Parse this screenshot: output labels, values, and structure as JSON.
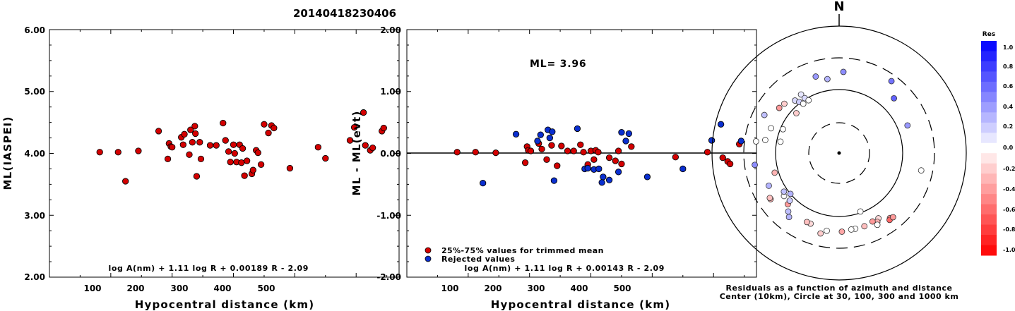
{
  "page_title": "20140418230406",
  "chart_data": [
    {
      "type": "scatter",
      "title": "",
      "ylabel": "ML(IASPEI)",
      "xlabel": "Hypocentral distance (km)",
      "xlim": [
        0,
        570
      ],
      "ylim": [
        2.0,
        6.0
      ],
      "xticks": [
        "100",
        "200",
        "300",
        "400",
        "500"
      ],
      "yticks": [
        "2.00",
        "3.00",
        "4.00",
        "5.00",
        "6.00"
      ],
      "formula": "log A(nm) + 1.11 log R + 0.00189 R - 2.09",
      "color": "#d40000",
      "points": [
        [
          82,
          4.02
        ],
        [
          112,
          4.02
        ],
        [
          124,
          3.55
        ],
        [
          145,
          4.04
        ],
        [
          178,
          4.36
        ],
        [
          193,
          3.91
        ],
        [
          195,
          4.16
        ],
        [
          198,
          4.11
        ],
        [
          200,
          4.1
        ],
        [
          215,
          4.26
        ],
        [
          218,
          4.14
        ],
        [
          220,
          4.31
        ],
        [
          228,
          3.98
        ],
        [
          230,
          4.38
        ],
        [
          233,
          4.18
        ],
        [
          237,
          4.44
        ],
        [
          238,
          4.32
        ],
        [
          240,
          3.63
        ],
        [
          245,
          4.18
        ],
        [
          247,
          3.91
        ],
        [
          262,
          4.13
        ],
        [
          272,
          4.13
        ],
        [
          283,
          4.49
        ],
        [
          287,
          4.21
        ],
        [
          292,
          4.03
        ],
        [
          295,
          3.86
        ],
        [
          300,
          4.14
        ],
        [
          302,
          4.0
        ],
        [
          305,
          3.86
        ],
        [
          310,
          4.14
        ],
        [
          313,
          3.85
        ],
        [
          315,
          4.08
        ],
        [
          318,
          3.64
        ],
        [
          322,
          3.88
        ],
        [
          330,
          3.67
        ],
        [
          332,
          3.73
        ],
        [
          337,
          4.05
        ],
        [
          340,
          4.01
        ],
        [
          345,
          3.82
        ],
        [
          350,
          4.47
        ],
        [
          357,
          4.33
        ],
        [
          362,
          4.45
        ],
        [
          366,
          4.41
        ],
        [
          392,
          3.76
        ],
        [
          438,
          4.1
        ],
        [
          450,
          3.92
        ],
        [
          490,
          4.21
        ],
        [
          497,
          4.42
        ],
        [
          512,
          4.66
        ],
        [
          515,
          4.13
        ],
        [
          523,
          4.05
        ],
        [
          527,
          4.09
        ],
        [
          542,
          4.36
        ],
        [
          545,
          4.41
        ]
      ]
    },
    {
      "type": "scatter",
      "title": "",
      "ylabel": "ML - ML(evt)",
      "xlabel": "Hypocentral distance (km)",
      "xlim": [
        0,
        570
      ],
      "ylim": [
        -2.0,
        2.0
      ],
      "xticks": [
        "100",
        "200",
        "300",
        "400",
        "500"
      ],
      "yticks": [
        "-2.00",
        "-1.00",
        "0.00",
        "1.00",
        "2.00"
      ],
      "annotation": "ML= 3.96",
      "formula": "log A(nm) + 1.11 log R + 0.00143 R - 2.09",
      "legend": [
        {
          "name": "25%-75% values for trimmed mean",
          "color": "#d40000"
        },
        {
          "name": "Rejected values",
          "color": "#0a2fd0"
        }
      ],
      "series": [
        {
          "name": "25%-75% values for trimmed mean",
          "color": "#d40000",
          "points": [
            [
              82,
              0.02
            ],
            [
              112,
              0.02
            ],
            [
              145,
              0.01
            ],
            [
              193,
              -0.15
            ],
            [
              196,
              0.11
            ],
            [
              198,
              0.05
            ],
            [
              202,
              0.04
            ],
            [
              215,
              0.16
            ],
            [
              220,
              0.07
            ],
            [
              228,
              -0.1
            ],
            [
              236,
              0.13
            ],
            [
              245,
              -0.2
            ],
            [
              252,
              0.12
            ],
            [
              262,
              0.04
            ],
            [
              272,
              0.04
            ],
            [
              283,
              0.14
            ],
            [
              288,
              0.02
            ],
            [
              295,
              -0.18
            ],
            [
              300,
              0.04
            ],
            [
              305,
              -0.1
            ],
            [
              308,
              0.05
            ],
            [
              312,
              0.02
            ],
            [
              330,
              -0.07
            ],
            [
              340,
              -0.12
            ],
            [
              345,
              0.04
            ],
            [
              350,
              -0.17
            ],
            [
              366,
              0.11
            ],
            [
              438,
              -0.06
            ],
            [
              490,
              0.02
            ],
            [
              515,
              -0.07
            ],
            [
              523,
              -0.13
            ],
            [
              527,
              -0.17
            ],
            [
              542,
              0.15
            ]
          ]
        },
        {
          "name": "Rejected values",
          "color": "#0a2fd0",
          "points": [
            [
              124,
              -0.48
            ],
            [
              178,
              0.31
            ],
            [
              213,
              0.2
            ],
            [
              218,
              0.3
            ],
            [
              230,
              0.38
            ],
            [
              233,
              0.25
            ],
            [
              237,
              0.35
            ],
            [
              240,
              -0.44
            ],
            [
              278,
              0.4
            ],
            [
              290,
              -0.25
            ],
            [
              295,
              -0.24
            ],
            [
              305,
              -0.26
            ],
            [
              313,
              -0.25
            ],
            [
              318,
              -0.47
            ],
            [
              320,
              -0.38
            ],
            [
              330,
              -0.43
            ],
            [
              345,
              -0.3
            ],
            [
              350,
              0.34
            ],
            [
              357,
              0.2
            ],
            [
              362,
              0.32
            ],
            [
              392,
              -0.38
            ],
            [
              450,
              -0.25
            ],
            [
              497,
              0.21
            ],
            [
              512,
              0.47
            ],
            [
              545,
              0.2
            ]
          ]
        }
      ]
    },
    {
      "type": "scatter",
      "title": "",
      "north_label": "N",
      "caption_line1": "Residuals as a function of azimuth and distance",
      "caption_line2": "Center (10km), Circle at 30, 100, 300 and 1000 km",
      "colorbar": {
        "title": "Res",
        "ticks": [
          "1.0",
          "0.8",
          "0.6",
          "0.4",
          "0.2",
          "0.0",
          "-0.2",
          "-0.4",
          "-0.6",
          "-0.8",
          "-1.0"
        ],
        "range": [
          -1.0,
          1.0
        ],
        "positive_color": "#0000ff",
        "negative_color": "#ff0000"
      },
      "stations": [
        {
          "az": 3,
          "r": 0.64,
          "res": 0.45
        },
        {
          "az": 36,
          "r": 0.7,
          "res": 0.55
        },
        {
          "az": 45,
          "r": 0.61,
          "res": 0.62
        },
        {
          "az": 68,
          "r": 0.58,
          "res": 0.4
        },
        {
          "az": 160,
          "r": 0.49,
          "res": 0.0
        },
        {
          "az": 102,
          "r": 0.66,
          "res": 0.0
        },
        {
          "az": 142,
          "r": 0.65,
          "res": -0.4
        },
        {
          "az": 143,
          "r": 0.66,
          "res": -0.6
        },
        {
          "az": 140,
          "r": 0.66,
          "res": -0.4
        },
        {
          "az": 149,
          "r": 0.6,
          "res": -0.15
        },
        {
          "az": 151,
          "r": 0.62,
          "res": -0.3
        },
        {
          "az": 152,
          "r": 0.64,
          "res": 0.0
        },
        {
          "az": 154,
          "r": 0.6,
          "res": -0.4
        },
        {
          "az": 161,
          "r": 0.61,
          "res": -0.25
        },
        {
          "az": 168,
          "r": 0.61,
          "res": 0.0
        },
        {
          "az": 171,
          "r": 0.61,
          "res": 0.0
        },
        {
          "az": 178,
          "r": 0.62,
          "res": -0.35
        },
        {
          "az": 189,
          "r": 0.62,
          "res": 0.0
        },
        {
          "az": 193,
          "r": 0.65,
          "res": -0.2
        },
        {
          "az": 202,
          "r": 0.6,
          "res": -0.15
        },
        {
          "az": 205,
          "r": 0.6,
          "res": -0.25
        },
        {
          "az": 218,
          "r": 0.64,
          "res": 0.3
        },
        {
          "az": 221,
          "r": 0.61,
          "res": 0.25
        },
        {
          "az": 225,
          "r": 0.57,
          "res": -0.4
        },
        {
          "az": 226,
          "r": 0.54,
          "res": 0.2
        },
        {
          "az": 230,
          "r": 0.5,
          "res": 0.3
        },
        {
          "az": 232,
          "r": 0.55,
          "res": 0.0
        },
        {
          "az": 235,
          "r": 0.53,
          "res": 0.25
        },
        {
          "az": 236,
          "r": 0.65,
          "res": -0.3
        },
        {
          "az": 237,
          "r": 0.65,
          "res": -0.25
        },
        {
          "az": 245,
          "r": 0.61,
          "res": 0.3
        },
        {
          "az": 253,
          "r": 0.53,
          "res": -0.3
        },
        {
          "az": 262,
          "r": 0.67,
          "res": 0.45
        },
        {
          "az": 278,
          "r": 0.66,
          "res": 0.0
        },
        {
          "az": 280,
          "r": 0.59,
          "res": 0.0
        },
        {
          "az": 281,
          "r": 0.47,
          "res": 0.0
        },
        {
          "az": 290,
          "r": 0.57,
          "res": 0.0
        },
        {
          "az": 293,
          "r": 0.48,
          "res": 0.0
        },
        {
          "az": 297,
          "r": 0.66,
          "res": 0.25
        },
        {
          "az": 307,
          "r": 0.59,
          "res": -0.4
        },
        {
          "az": 312,
          "r": 0.58,
          "res": -0.2
        },
        {
          "az": 313,
          "r": 0.46,
          "res": -0.2
        },
        {
          "az": 320,
          "r": 0.54,
          "res": 0.15
        },
        {
          "az": 322,
          "r": 0.51,
          "res": 0.2
        },
        {
          "az": 324,
          "r": 0.48,
          "res": 0.0
        },
        {
          "az": 327,
          "r": 0.55,
          "res": 0.1
        },
        {
          "az": 328,
          "r": 0.51,
          "res": 0.15
        },
        {
          "az": 330,
          "r": 0.48,
          "res": 0.0
        },
        {
          "az": 343,
          "r": 0.63,
          "res": 0.4
        },
        {
          "az": 351,
          "r": 0.59,
          "res": 0.3
        }
      ]
    }
  ]
}
